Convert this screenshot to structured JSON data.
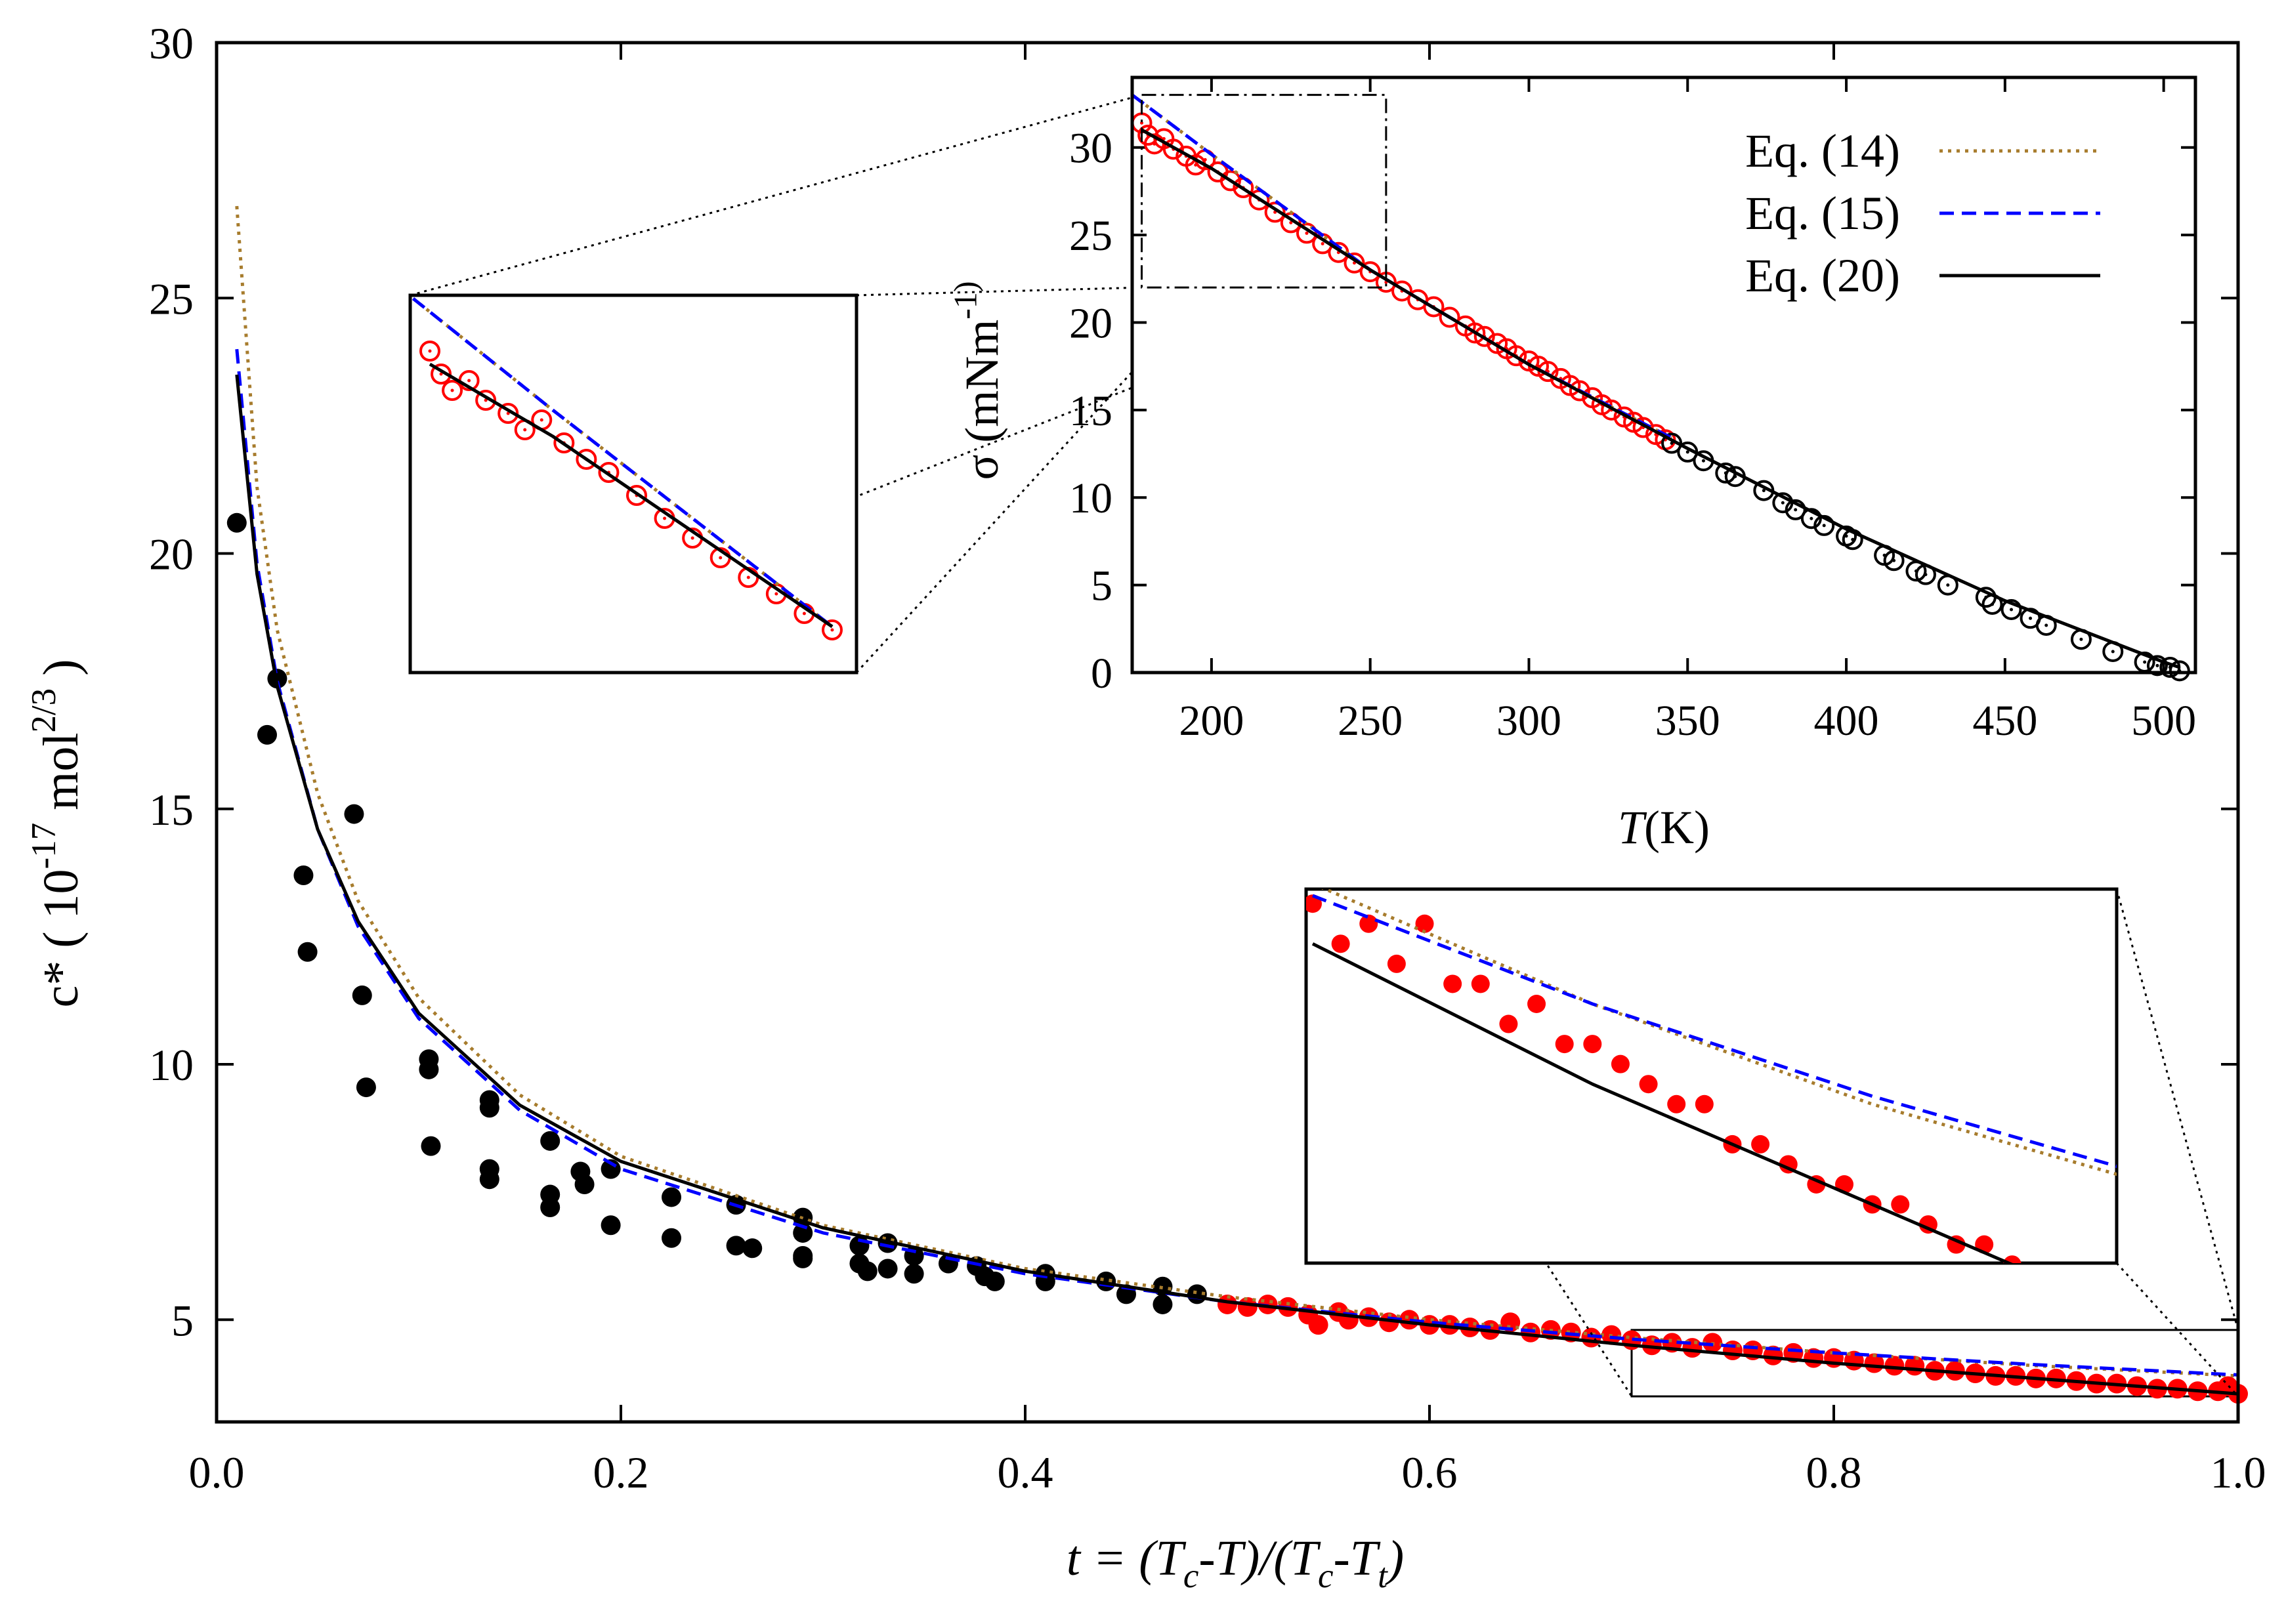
{
  "chart_data": [
    {
      "type": "scatter",
      "title": "",
      "xlabel": "t = (T_c-T)/(T_c-T_t)",
      "ylabel": "c* ( 10^-17 mol^2/3 )",
      "xlim": [
        0.0,
        1.0
      ],
      "ylim": [
        3.0,
        30.0
      ],
      "xticks": [
        "0.0",
        "0.2",
        "0.4",
        "0.6",
        "0.8",
        "1.0"
      ],
      "yticks": [
        "5",
        "10",
        "15",
        "20",
        "25",
        "30"
      ],
      "legend": "none",
      "series": [
        {
          "color": "#000000",
          "marker": "filled-circle",
          "points": [
            [
              0.01,
              20.6
            ],
            [
              0.025,
              16.45
            ],
            [
              0.03,
              17.55
            ],
            [
              0.043,
              13.7
            ],
            [
              0.045,
              12.2
            ],
            [
              0.068,
              14.9
            ],
            [
              0.072,
              11.35
            ],
            [
              0.074,
              9.55
            ],
            [
              0.105,
              10.1
            ],
            [
              0.105,
              9.9
            ],
            [
              0.106,
              8.4
            ],
            [
              0.135,
              9.3
            ],
            [
              0.135,
              9.15
            ],
            [
              0.135,
              7.95
            ],
            [
              0.135,
              7.75
            ],
            [
              0.165,
              8.5
            ],
            [
              0.165,
              7.45
            ],
            [
              0.165,
              7.2
            ],
            [
              0.18,
              7.9
            ],
            [
              0.182,
              7.65
            ],
            [
              0.195,
              7.95
            ],
            [
              0.195,
              6.85
            ],
            [
              0.225,
              7.4
            ],
            [
              0.225,
              6.6
            ],
            [
              0.257,
              7.25
            ],
            [
              0.257,
              6.45
            ],
            [
              0.265,
              6.4
            ],
            [
              0.29,
              7.0
            ],
            [
              0.29,
              6.7
            ],
            [
              0.29,
              6.25
            ],
            [
              0.29,
              6.2
            ],
            [
              0.318,
              6.45
            ],
            [
              0.318,
              6.1
            ],
            [
              0.322,
              5.95
            ],
            [
              0.332,
              6.5
            ],
            [
              0.332,
              6.0
            ],
            [
              0.345,
              6.25
            ],
            [
              0.345,
              5.9
            ],
            [
              0.362,
              6.1
            ],
            [
              0.376,
              6.05
            ],
            [
              0.38,
              5.85
            ],
            [
              0.385,
              5.75
            ],
            [
              0.41,
              5.9
            ],
            [
              0.41,
              5.75
            ],
            [
              0.44,
              5.75
            ],
            [
              0.45,
              5.5
            ],
            [
              0.468,
              5.65
            ],
            [
              0.468,
              5.3
            ],
            [
              0.485,
              5.5
            ]
          ]
        },
        {
          "color": "#ff0000",
          "marker": "filled-circle",
          "points": [
            [
              0.5,
              5.3
            ],
            [
              0.51,
              5.25
            ],
            [
              0.52,
              5.3
            ],
            [
              0.53,
              5.25
            ],
            [
              0.54,
              5.1
            ],
            [
              0.545,
              4.9
            ],
            [
              0.555,
              5.15
            ],
            [
              0.56,
              5.0
            ],
            [
              0.57,
              5.05
            ],
            [
              0.58,
              4.95
            ],
            [
              0.59,
              5.0
            ],
            [
              0.6,
              4.9
            ],
            [
              0.61,
              4.9
            ],
            [
              0.62,
              4.85
            ],
            [
              0.63,
              4.8
            ],
            [
              0.64,
              4.95
            ],
            [
              0.65,
              4.75
            ],
            [
              0.66,
              4.8
            ],
            [
              0.67,
              4.75
            ],
            [
              0.68,
              4.65
            ],
            [
              0.69,
              4.7
            ],
            [
              0.7,
              4.6
            ],
            [
              0.71,
              4.5
            ],
            [
              0.72,
              4.55
            ],
            [
              0.73,
              4.45
            ],
            [
              0.74,
              4.55
            ],
            [
              0.75,
              4.4
            ],
            [
              0.76,
              4.4
            ],
            [
              0.77,
              4.3
            ],
            [
              0.78,
              4.35
            ],
            [
              0.79,
              4.25
            ],
            [
              0.8,
              4.25
            ],
            [
              0.81,
              4.2
            ],
            [
              0.82,
              4.15
            ],
            [
              0.83,
              4.1
            ],
            [
              0.84,
              4.1
            ],
            [
              0.85,
              4.0
            ],
            [
              0.86,
              4.0
            ],
            [
              0.87,
              3.95
            ],
            [
              0.88,
              3.9
            ],
            [
              0.89,
              3.9
            ],
            [
              0.9,
              3.85
            ],
            [
              0.91,
              3.85
            ],
            [
              0.92,
              3.8
            ],
            [
              0.93,
              3.75
            ],
            [
              0.94,
              3.75
            ],
            [
              0.95,
              3.7
            ],
            [
              0.96,
              3.65
            ],
            [
              0.97,
              3.65
            ],
            [
              0.98,
              3.6
            ],
            [
              0.99,
              3.6
            ],
            [
              1.0,
              3.55
            ],
            [
              0.995,
              3.7
            ]
          ]
        },
        {
          "color": "#a77c2d",
          "dash": "dotted",
          "line": [
            [
              0.01,
              26.8
            ],
            [
              0.02,
              21.3
            ],
            [
              0.03,
              18.5
            ],
            [
              0.05,
              15.3
            ],
            [
              0.07,
              13.2
            ],
            [
              0.1,
              11.3
            ],
            [
              0.15,
              9.4
            ],
            [
              0.2,
              8.2
            ],
            [
              0.3,
              6.85
            ],
            [
              0.4,
              6.0
            ],
            [
              0.5,
              5.45
            ],
            [
              0.6,
              5.0
            ],
            [
              0.7,
              4.65
            ],
            [
              0.8,
              4.35
            ],
            [
              0.9,
              4.1
            ],
            [
              1.0,
              3.9
            ]
          ]
        },
        {
          "color": "#0000ff",
          "dash": "dashed",
          "line": [
            [
              0.01,
              24.0
            ],
            [
              0.02,
              19.8
            ],
            [
              0.03,
              17.5
            ],
            [
              0.05,
              14.6
            ],
            [
              0.07,
              12.7
            ],
            [
              0.1,
              10.9
            ],
            [
              0.15,
              9.1
            ],
            [
              0.2,
              7.95
            ],
            [
              0.3,
              6.7
            ],
            [
              0.4,
              5.9
            ],
            [
              0.5,
              5.35
            ],
            [
              0.6,
              4.95
            ],
            [
              0.7,
              4.62
            ],
            [
              0.8,
              4.35
            ],
            [
              0.9,
              4.12
            ],
            [
              1.0,
              3.92
            ]
          ]
        },
        {
          "color": "#000000",
          "dash": "solid",
          "line": [
            [
              0.01,
              23.5
            ],
            [
              0.02,
              19.6
            ],
            [
              0.03,
              17.4
            ],
            [
              0.05,
              14.6
            ],
            [
              0.07,
              12.8
            ],
            [
              0.1,
              11.0
            ],
            [
              0.15,
              9.2
            ],
            [
              0.2,
              8.1
            ],
            [
              0.3,
              6.8
            ],
            [
              0.4,
              5.95
            ],
            [
              0.5,
              5.35
            ],
            [
              0.6,
              4.9
            ],
            [
              0.7,
              4.5
            ],
            [
              0.8,
              4.15
            ],
            [
              0.9,
              3.85
            ],
            [
              1.0,
              3.55
            ]
          ]
        }
      ]
    },
    {
      "type": "scatter",
      "title": "",
      "xlabel": "T(K)",
      "ylabel": "σ (mNm^-1)",
      "xlim": [
        175,
        510
      ],
      "ylim": [
        0,
        34
      ],
      "xticks": [
        "200",
        "250",
        "300",
        "350",
        "400",
        "450",
        "500"
      ],
      "yticks": [
        "0",
        "5",
        "10",
        "15",
        "20",
        "25",
        "30"
      ],
      "legend": "top-right",
      "series": [
        {
          "name": "Eq. (14)",
          "color": "#a77c2d",
          "dash": "dotted",
          "line": [
            [
              175,
              33.0
            ],
            [
              200,
              29.6
            ],
            [
              250,
              23.0
            ],
            [
              300,
              17.6
            ],
            [
              345,
              13.4
            ]
          ]
        },
        {
          "name": "Eq. (15)",
          "color": "#0000ff",
          "dash": "dashed",
          "line": [
            [
              175,
              33.0
            ],
            [
              200,
              29.6
            ],
            [
              250,
              23.0
            ],
            [
              300,
              17.6
            ],
            [
              345,
              13.4
            ]
          ]
        },
        {
          "name": "Eq. (20)",
          "color": "#000000",
          "dash": "solid",
          "line": [
            [
              178,
              31.0
            ],
            [
              200,
              28.8
            ],
            [
              250,
              23.0
            ],
            [
              300,
              17.6
            ],
            [
              350,
              12.8
            ],
            [
              400,
              8.2
            ],
            [
              450,
              4.1
            ],
            [
              500,
              0.6
            ],
            [
              505,
              0.3
            ]
          ]
        },
        {
          "color": "#ff0000",
          "marker": "open-circle",
          "points": [
            [
              178,
              31.4
            ],
            [
              180,
              30.7
            ],
            [
              182,
              30.2
            ],
            [
              185,
              30.5
            ],
            [
              188,
              29.9
            ],
            [
              192,
              29.5
            ],
            [
              195,
              29.0
            ],
            [
              198,
              29.3
            ],
            [
              202,
              28.6
            ],
            [
              206,
              28.1
            ],
            [
              210,
              27.7
            ],
            [
              215,
              27.0
            ],
            [
              220,
              26.3
            ],
            [
              225,
              25.7
            ],
            [
              230,
              25.1
            ],
            [
              235,
              24.5
            ],
            [
              240,
              24.0
            ],
            [
              245,
              23.4
            ],
            [
              250,
              22.9
            ],
            [
              255,
              22.3
            ],
            [
              260,
              21.8
            ],
            [
              265,
              21.3
            ],
            [
              270,
              20.9
            ],
            [
              275,
              20.3
            ],
            [
              280,
              19.8
            ],
            [
              283,
              19.4
            ],
            [
              286,
              19.2
            ],
            [
              290,
              18.8
            ],
            [
              293,
              18.5
            ],
            [
              296,
              18.1
            ],
            [
              300,
              17.8
            ],
            [
              303,
              17.5
            ],
            [
              306,
              17.2
            ],
            [
              310,
              16.8
            ],
            [
              313,
              16.4
            ],
            [
              316,
              16.1
            ],
            [
              320,
              15.7
            ],
            [
              323,
              15.3
            ],
            [
              326,
              15.0
            ],
            [
              330,
              14.6
            ],
            [
              333,
              14.3
            ],
            [
              336,
              14.0
            ],
            [
              340,
              13.6
            ],
            [
              343,
              13.3
            ]
          ]
        },
        {
          "color": "#000000",
          "marker": "open-circle",
          "points": [
            [
              345,
              13.1
            ],
            [
              350,
              12.6
            ],
            [
              355,
              12.1
            ],
            [
              362,
              11.4
            ],
            [
              365,
              11.2
            ],
            [
              374,
              10.4
            ],
            [
              380,
              9.7
            ],
            [
              384,
              9.3
            ],
            [
              389,
              8.8
            ],
            [
              393,
              8.4
            ],
            [
              400,
              7.8
            ],
            [
              402,
              7.6
            ],
            [
              412,
              6.7
            ],
            [
              415,
              6.4
            ],
            [
              422,
              5.8
            ],
            [
              425,
              5.6
            ],
            [
              432,
              5.0
            ],
            [
              444,
              4.3
            ],
            [
              446,
              3.9
            ],
            [
              452,
              3.6
            ],
            [
              458,
              3.1
            ],
            [
              463,
              2.7
            ],
            [
              474,
              1.9
            ],
            [
              484,
              1.2
            ],
            [
              494,
              0.6
            ],
            [
              498,
              0.4
            ],
            [
              502,
              0.3
            ],
            [
              505,
              0.1
            ]
          ]
        }
      ]
    }
  ]
}
